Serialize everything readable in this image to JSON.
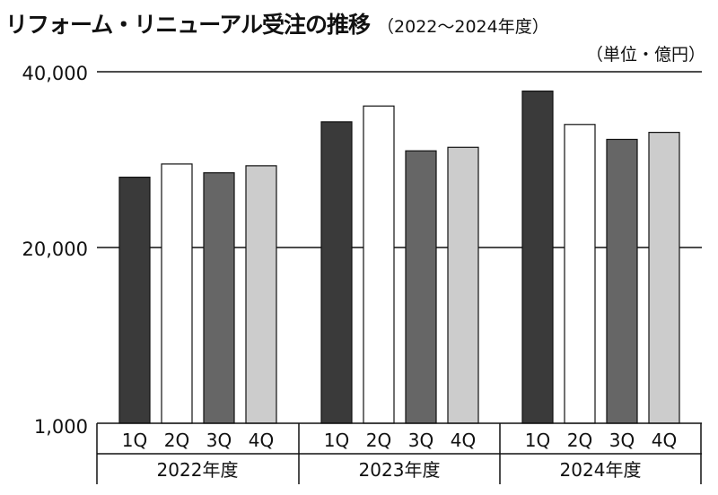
{
  "chart_data": {
    "type": "bar",
    "title": "リフォーム・リニューアル受注の推移",
    "subtitle": "（2022～2024年度）",
    "unit": "（単位・億円）",
    "y_tick_labels": [
      "40,000",
      "20,000",
      "1,000"
    ],
    "y_tick_values": [
      40000,
      20000,
      1000
    ],
    "ylim": [
      1000,
      40000
    ],
    "groups": [
      "2022年度",
      "2023年度",
      "2024年度"
    ],
    "quarters": [
      "1Q",
      "2Q",
      "3Q",
      "4Q"
    ],
    "series": [
      {
        "values": [
          28000,
          29500,
          28500,
          29300
        ],
        "color": "#3a3a3a"
      },
      {
        "values": [
          34300,
          36100,
          31000,
          31400
        ],
        "color": "#ffffff"
      },
      {
        "values": [
          37800,
          34000,
          32300,
          33100
        ],
        "color": "#666666"
      }
    ],
    "bar_colors": [
      "#3a3a3a",
      "#ffffff",
      "#666666",
      "#cccccc"
    ],
    "grid": true,
    "legend": "none"
  }
}
